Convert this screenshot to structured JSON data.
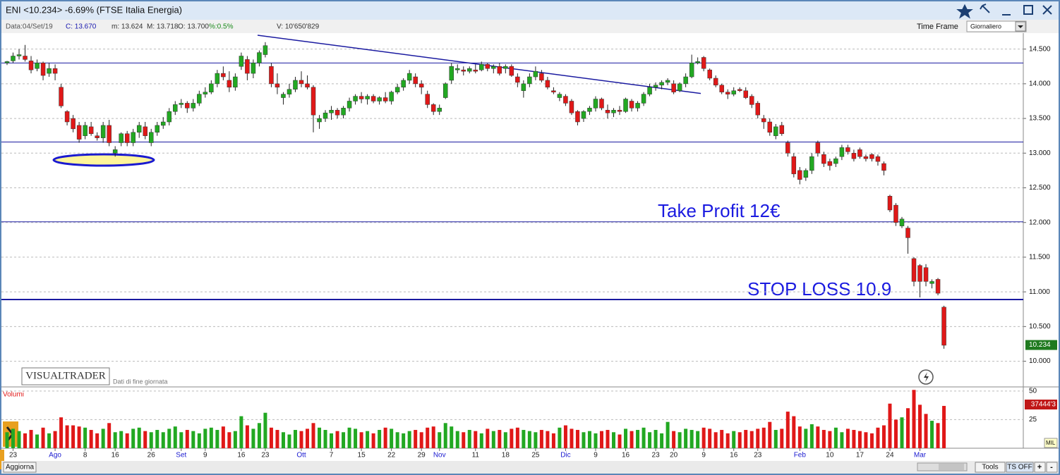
{
  "window": {
    "title": "ENI <10.234>  -6.69%  (FTSE Italia Energia)",
    "info": [
      "Data:04/Set/19",
      "C: 13.670",
      "m: 13.624",
      "M: 13.718",
      "O: 13.700",
      "%:0.5%",
      "V: 10'650'829"
    ],
    "time_frame_label": "Time Frame",
    "time_frame": "Giornaliero",
    "brand": "VISUALTRADER",
    "brand_note": "Dati di fine giornata",
    "buttons": [
      "Aggiorna",
      "Tools",
      "TS OFF",
      "+",
      "-"
    ],
    "mil": "MIL"
  },
  "chart_data": [
    {
      "type": "candlestick",
      "up_color": "#22a822",
      "down_color": "#e01818",
      "line_color": "#1a1aa0",
      "categories": [
        null,
        "23",
        null,
        null,
        null,
        null,
        null,
        null,
        "Ago",
        null,
        null,
        null,
        null,
        "8",
        null,
        null,
        null,
        null,
        "16",
        null,
        null,
        null,
        null,
        null,
        "26",
        null,
        null,
        null,
        null,
        "Set",
        null,
        null,
        null,
        "9",
        null,
        null,
        null,
        null,
        null,
        "16",
        null,
        null,
        null,
        "23",
        null,
        null,
        null,
        null,
        null,
        "Ott",
        null,
        null,
        null,
        null,
        "7",
        null,
        null,
        null,
        null,
        "15",
        null,
        null,
        null,
        null,
        "22",
        null,
        null,
        null,
        null,
        "29",
        null,
        null,
        "Nov",
        null,
        null,
        null,
        null,
        null,
        "11",
        null,
        null,
        null,
        null,
        "18",
        null,
        null,
        null,
        null,
        "25",
        null,
        null,
        null,
        null,
        "Dic",
        null,
        null,
        null,
        null,
        "9",
        null,
        null,
        null,
        null,
        "16",
        null,
        null,
        null,
        null,
        "23",
        null,
        null,
        "20",
        null,
        null,
        null,
        null,
        "9",
        null,
        null,
        null,
        null,
        "16",
        null,
        null,
        null,
        "23",
        null,
        null,
        null,
        null,
        null,
        null,
        "Feb",
        null,
        null,
        null,
        null,
        "10",
        null,
        null,
        null,
        null,
        "17",
        null,
        null,
        null,
        null,
        "24",
        null,
        null,
        null,
        null,
        "Mar",
        null,
        null,
        null,
        null
      ],
      "candles": [
        [
          14.3,
          14.33,
          14.27,
          14.32
        ],
        [
          14.33,
          14.45,
          14.3,
          14.4
        ],
        [
          14.4,
          14.5,
          14.35,
          14.42
        ],
        [
          14.4,
          14.56,
          14.32,
          14.35
        ],
        [
          14.33,
          14.4,
          14.15,
          14.2
        ],
        [
          14.22,
          14.35,
          14.18,
          14.3
        ],
        [
          14.3,
          14.32,
          14.05,
          14.12
        ],
        [
          14.15,
          14.3,
          14.1,
          14.22
        ],
        [
          14.22,
          14.28,
          14.05,
          14.15
        ],
        [
          13.95,
          14.0,
          13.65,
          13.68
        ],
        [
          13.6,
          13.62,
          13.4,
          13.45
        ],
        [
          13.5,
          13.55,
          13.3,
          13.35
        ],
        [
          13.4,
          13.45,
          13.15,
          13.2
        ],
        [
          13.25,
          13.45,
          13.2,
          13.4
        ],
        [
          13.38,
          13.45,
          13.25,
          13.28
        ],
        [
          13.25,
          13.3,
          13.18,
          13.22
        ],
        [
          13.22,
          13.45,
          13.15,
          13.4
        ],
        [
          13.4,
          13.48,
          13.1,
          13.15
        ],
        [
          13.0,
          13.1,
          12.95,
          13.05
        ],
        [
          13.15,
          13.3,
          13.1,
          13.28
        ],
        [
          13.28,
          13.32,
          13.1,
          13.15
        ],
        [
          13.15,
          13.35,
          13.1,
          13.3
        ],
        [
          13.3,
          13.45,
          13.22,
          13.4
        ],
        [
          13.38,
          13.45,
          13.2,
          13.25
        ],
        [
          13.15,
          13.35,
          13.1,
          13.3
        ],
        [
          13.3,
          13.45,
          13.25,
          13.4
        ],
        [
          13.4,
          13.52,
          13.35,
          13.45
        ],
        [
          13.45,
          13.65,
          13.4,
          13.6
        ],
        [
          13.6,
          13.75,
          13.55,
          13.7
        ],
        [
          13.7,
          13.78,
          13.65,
          13.72
        ],
        [
          13.72,
          13.75,
          13.58,
          13.65
        ],
        [
          13.65,
          13.78,
          13.6,
          13.72
        ],
        [
          13.72,
          13.9,
          13.68,
          13.85
        ],
        [
          13.85,
          13.95,
          13.8,
          13.88
        ],
        [
          13.88,
          14.05,
          13.85,
          14.0
        ],
        [
          14.0,
          14.2,
          13.95,
          14.15
        ],
        [
          14.15,
          14.25,
          14.05,
          14.1
        ],
        [
          14.05,
          14.18,
          13.88,
          13.95
        ],
        [
          13.95,
          14.15,
          13.9,
          14.1
        ],
        [
          14.25,
          14.45,
          14.2,
          14.4
        ],
        [
          14.35,
          14.4,
          14.05,
          14.15
        ],
        [
          14.15,
          14.35,
          14.08,
          14.3
        ],
        [
          14.3,
          14.48,
          14.25,
          14.45
        ],
        [
          14.42,
          14.6,
          14.38,
          14.55
        ],
        [
          14.25,
          14.3,
          13.95,
          14.0
        ],
        [
          14.0,
          14.15,
          13.85,
          13.95
        ],
        [
          13.8,
          13.88,
          13.7,
          13.85
        ],
        [
          13.85,
          14.0,
          13.8,
          13.92
        ],
        [
          13.92,
          14.1,
          13.88,
          14.05
        ],
        [
          14.05,
          14.18,
          13.95,
          14.0
        ],
        [
          14.0,
          14.12,
          13.92,
          13.95
        ],
        [
          13.95,
          13.98,
          13.3,
          13.55
        ],
        [
          13.45,
          13.55,
          13.35,
          13.5
        ],
        [
          13.5,
          13.62,
          13.45,
          13.58
        ],
        [
          13.58,
          13.68,
          13.48,
          13.62
        ],
        [
          13.62,
          13.65,
          13.5,
          13.55
        ],
        [
          13.55,
          13.68,
          13.5,
          13.65
        ],
        [
          13.65,
          13.8,
          13.6,
          13.75
        ],
        [
          13.75,
          13.85,
          13.7,
          13.82
        ],
        [
          13.82,
          13.88,
          13.72,
          13.78
        ],
        [
          13.78,
          13.85,
          13.7,
          13.82
        ],
        [
          13.82,
          13.85,
          13.72,
          13.75
        ],
        [
          13.75,
          13.82,
          13.7,
          13.8
        ],
        [
          13.8,
          13.88,
          13.72,
          13.75
        ],
        [
          13.75,
          13.9,
          13.7,
          13.88
        ],
        [
          13.88,
          14.0,
          13.85,
          13.95
        ],
        [
          13.95,
          14.08,
          13.9,
          14.05
        ],
        [
          14.05,
          14.2,
          14.0,
          14.15
        ],
        [
          14.1,
          14.15,
          13.95,
          14.0
        ],
        [
          14.0,
          14.05,
          13.85,
          13.95
        ],
        [
          13.85,
          13.9,
          13.65,
          13.7
        ],
        [
          13.7,
          13.72,
          13.55,
          13.6
        ],
        [
          13.6,
          13.7,
          13.55,
          13.65
        ],
        [
          13.8,
          14.02,
          13.78,
          14.0
        ],
        [
          14.05,
          14.3,
          14.0,
          14.25
        ],
        [
          14.2,
          14.28,
          14.15,
          14.22
        ],
        [
          14.2,
          14.25,
          14.12,
          14.18
        ],
        [
          14.18,
          14.25,
          14.15,
          14.22
        ],
        [
          14.2,
          14.28,
          14.15,
          14.18
        ],
        [
          14.2,
          14.32,
          14.18,
          14.28
        ],
        [
          14.28,
          14.3,
          14.18,
          14.22
        ],
        [
          14.22,
          14.28,
          14.15,
          14.25
        ],
        [
          14.25,
          14.3,
          14.12,
          14.15
        ],
        [
          14.22,
          14.28,
          14.15,
          14.25
        ],
        [
          14.25,
          14.28,
          14.1,
          14.12
        ],
        [
          14.1,
          14.15,
          13.95,
          14.02
        ],
        [
          13.9,
          14.05,
          13.8,
          14.0
        ],
        [
          14.0,
          14.15,
          13.95,
          14.1
        ],
        [
          14.1,
          14.25,
          14.05,
          14.18
        ],
        [
          14.15,
          14.2,
          14.02,
          14.05
        ],
        [
          14.05,
          14.1,
          13.92,
          13.95
        ],
        [
          13.9,
          13.95,
          13.85,
          13.88
        ],
        [
          13.8,
          13.88,
          13.75,
          13.85
        ],
        [
          13.82,
          13.85,
          13.68,
          13.72
        ],
        [
          13.75,
          13.78,
          13.55,
          13.58
        ],
        [
          13.6,
          13.62,
          13.4,
          13.45
        ],
        [
          13.5,
          13.62,
          13.45,
          13.6
        ],
        [
          13.6,
          13.68,
          13.55,
          13.65
        ],
        [
          13.65,
          13.82,
          13.6,
          13.78
        ],
        [
          13.78,
          13.8,
          13.62,
          13.65
        ],
        [
          13.62,
          13.7,
          13.5,
          13.58
        ],
        [
          13.58,
          13.65,
          13.52,
          13.62
        ],
        [
          13.62,
          13.68,
          13.55,
          13.6
        ],
        [
          13.6,
          13.8,
          13.58,
          13.78
        ],
        [
          13.75,
          13.78,
          13.6,
          13.65
        ],
        [
          13.65,
          13.75,
          13.6,
          13.72
        ],
        [
          13.72,
          13.88,
          13.68,
          13.85
        ],
        [
          13.85,
          14.0,
          13.82,
          13.95
        ],
        [
          13.95,
          14.02,
          13.9,
          13.98
        ],
        [
          13.98,
          14.05,
          13.92,
          14.02
        ],
        [
          14.02,
          14.08,
          13.98,
          14.05
        ],
        [
          14.0,
          14.05,
          13.85,
          13.88
        ],
        [
          13.9,
          14.02,
          13.88,
          14.0
        ],
        [
          14.0,
          14.15,
          13.95,
          14.1
        ],
        [
          14.1,
          14.42,
          14.08,
          14.3
        ],
        [
          14.3,
          14.38,
          14.28,
          14.32
        ],
        [
          14.38,
          14.4,
          14.18,
          14.22
        ],
        [
          14.2,
          14.22,
          14.05,
          14.08
        ],
        [
          14.08,
          14.12,
          13.95,
          13.98
        ],
        [
          13.98,
          14.0,
          13.85,
          13.88
        ],
        [
          13.88,
          13.92,
          13.78,
          13.85
        ],
        [
          13.85,
          13.95,
          13.82,
          13.9
        ],
        [
          13.92,
          13.95,
          13.88,
          13.9
        ],
        [
          13.9,
          13.95,
          13.78,
          13.8
        ],
        [
          13.82,
          13.85,
          13.65,
          13.7
        ],
        [
          13.72,
          13.75,
          13.5,
          13.55
        ],
        [
          13.5,
          13.55,
          13.35,
          13.45
        ],
        [
          13.45,
          13.5,
          13.25,
          13.3
        ],
        [
          13.25,
          13.42,
          13.2,
          13.38
        ],
        [
          13.4,
          13.45,
          13.25,
          13.28
        ],
        [
          13.15,
          13.18,
          12.95,
          13.0
        ],
        [
          12.95,
          13.0,
          12.65,
          12.7
        ],
        [
          12.75,
          12.8,
          12.55,
          12.62
        ],
        [
          12.65,
          12.78,
          12.6,
          12.75
        ],
        [
          12.75,
          13.0,
          12.7,
          12.95
        ],
        [
          13.15,
          13.18,
          12.95,
          13.0
        ],
        [
          12.98,
          13.02,
          12.8,
          12.85
        ],
        [
          12.88,
          12.92,
          12.75,
          12.82
        ],
        [
          12.85,
          12.95,
          12.8,
          12.92
        ],
        [
          12.95,
          13.12,
          12.9,
          13.08
        ],
        [
          13.08,
          13.12,
          12.98,
          13.02
        ],
        [
          13.0,
          13.05,
          12.88,
          12.92
        ],
        [
          13.05,
          13.08,
          12.92,
          12.95
        ],
        [
          12.95,
          12.98,
          12.88,
          12.92
        ],
        [
          12.98,
          13.0,
          12.88,
          12.92
        ],
        [
          12.95,
          12.98,
          12.82,
          12.88
        ],
        [
          12.85,
          12.88,
          12.68,
          12.75
        ],
        [
          12.38,
          12.4,
          12.15,
          12.18
        ],
        [
          12.25,
          12.28,
          11.95,
          12.0
        ],
        [
          11.95,
          12.08,
          11.92,
          12.05
        ],
        [
          11.92,
          11.95,
          11.55,
          11.78
        ],
        [
          11.48,
          11.5,
          11.08,
          11.15
        ],
        [
          11.38,
          11.4,
          10.92,
          11.15
        ],
        [
          11.35,
          11.4,
          11.08,
          11.15
        ],
        [
          11.12,
          11.18,
          11.05,
          11.15
        ],
        [
          11.18,
          11.2,
          10.95,
          10.98
        ],
        [
          10.78,
          10.8,
          10.18,
          10.23
        ]
      ],
      "ylim": [
        9.64,
        14.72
      ],
      "yticks": [
        {
          "value": 10,
          "label": "10.000"
        },
        {
          "value": 10.5,
          "label": "10.500"
        },
        {
          "value": 11,
          "label": "11.000"
        },
        {
          "value": 11.5,
          "label": "11.500"
        },
        {
          "value": 12,
          "label": "12.000"
        },
        {
          "value": 12.5,
          "label": "12.500"
        },
        {
          "value": 13,
          "label": "13.000"
        },
        {
          "value": 13.5,
          "label": "13.500"
        },
        {
          "value": 14,
          "label": "14.000"
        },
        {
          "value": 14.5,
          "label": "14.500"
        }
      ],
      "grid": true,
      "levels": [
        14.3,
        13.16,
        12.01,
        10.89
      ],
      "trendline": [
        14.7,
        13.86
      ],
      "last_price": {
        "value": 10.234,
        "label": "10.234"
      },
      "annotations": [
        "Take Profit 12€",
        "STOP LOSS 10.9"
      ]
    },
    {
      "type": "bar",
      "title": "Volumi",
      "badge": "37444'3",
      "values": [
        14,
        17,
        15,
        13,
        16,
        12,
        18,
        13,
        15,
        27,
        20,
        20,
        19,
        18,
        16,
        13,
        17,
        22,
        14,
        15,
        13,
        17,
        18,
        15,
        14,
        16,
        14,
        17,
        19,
        14,
        16,
        15,
        13,
        17,
        18,
        16,
        19,
        14,
        15,
        28,
        20,
        17,
        22,
        31,
        18,
        16,
        14,
        12,
        16,
        15,
        17,
        22,
        18,
        16,
        13,
        15,
        14,
        18,
        17,
        14,
        15,
        13,
        16,
        18,
        17,
        14,
        13,
        15,
        16,
        14,
        18,
        19,
        14,
        22,
        19,
        15,
        14,
        16,
        15,
        13,
        17,
        15,
        16,
        14,
        17,
        18,
        16,
        15,
        14,
        16,
        15,
        13,
        18,
        20,
        17,
        16,
        14,
        15,
        13,
        15,
        16,
        14,
        12,
        17,
        15,
        16,
        18,
        14,
        16,
        13,
        23,
        15,
        14,
        17,
        16,
        15,
        18,
        17,
        14,
        16,
        13,
        15,
        14,
        16,
        15,
        17,
        18,
        23,
        16,
        17,
        32,
        28,
        19,
        17,
        21,
        19,
        16,
        15,
        18,
        14,
        17,
        16,
        15,
        14,
        13,
        18,
        20,
        39,
        25,
        27,
        35,
        51,
        38,
        30,
        24,
        22,
        37
      ],
      "ylim": [
        0,
        53
      ],
      "yticks": [
        25,
        50
      ],
      "grid": true
    }
  ]
}
